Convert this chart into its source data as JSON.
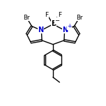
{
  "bg_color": "#ffffff",
  "bond_color": "#000000",
  "N_color": "#0000cc",
  "line_width": 1.0,
  "figsize": [
    1.52,
    1.52
  ],
  "dpi": 100,
  "xlim": [
    0,
    10
  ],
  "ylim": [
    0,
    10.5
  ]
}
